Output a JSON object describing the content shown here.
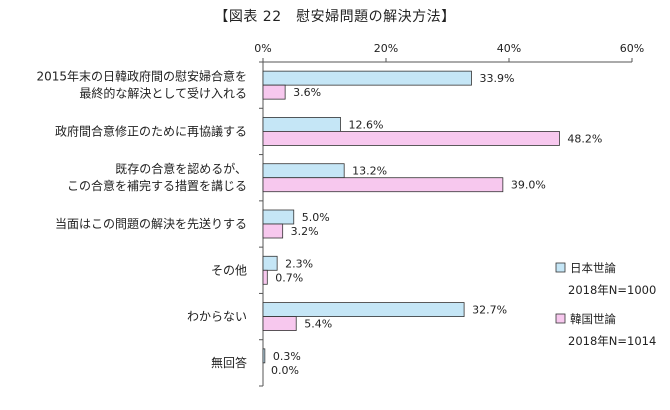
{
  "chart_data": {
    "type": "bar",
    "orientation": "horizontal",
    "title": "【図表 22　慰安婦問題の解決方法】",
    "categories": [
      [
        "2015年末の日韓政府間の慰安婦合意を",
        "最終的な解決として受け入れる"
      ],
      [
        "政府間合意修正のために再協議する"
      ],
      [
        "既存の合意を認めるが、",
        "この合意を補完する措置を講じる"
      ],
      [
        "当面はこの問題の解決を先送りする"
      ],
      [
        "その他"
      ],
      [
        "わからない"
      ],
      [
        "無回答"
      ]
    ],
    "series": [
      {
        "name": "日本世論",
        "sample": "2018年N=1000",
        "color": "#c5e6f6",
        "values": [
          33.9,
          12.6,
          13.2,
          5.0,
          2.3,
          32.7,
          0.3
        ],
        "labels": [
          "33.9%",
          "12.6%",
          "13.2%",
          "5.0%",
          "2.3%",
          "32.7%",
          "0.3%"
        ]
      },
      {
        "name": "韓国世論",
        "sample": "2018年N=1014",
        "color": "#f7c8ee",
        "values": [
          3.6,
          48.2,
          39.0,
          3.2,
          0.7,
          5.4,
          0.0
        ],
        "labels": [
          "3.6%",
          "48.2%",
          "39.0%",
          "3.2%",
          "0.7%",
          "5.4%",
          "0.0%"
        ]
      }
    ],
    "xlim": [
      0,
      60
    ],
    "xticks": [
      0,
      20,
      40,
      60
    ],
    "xtick_labels": [
      "0%",
      "20%",
      "40%",
      "60%"
    ],
    "grid": false,
    "legend_position": "right"
  }
}
